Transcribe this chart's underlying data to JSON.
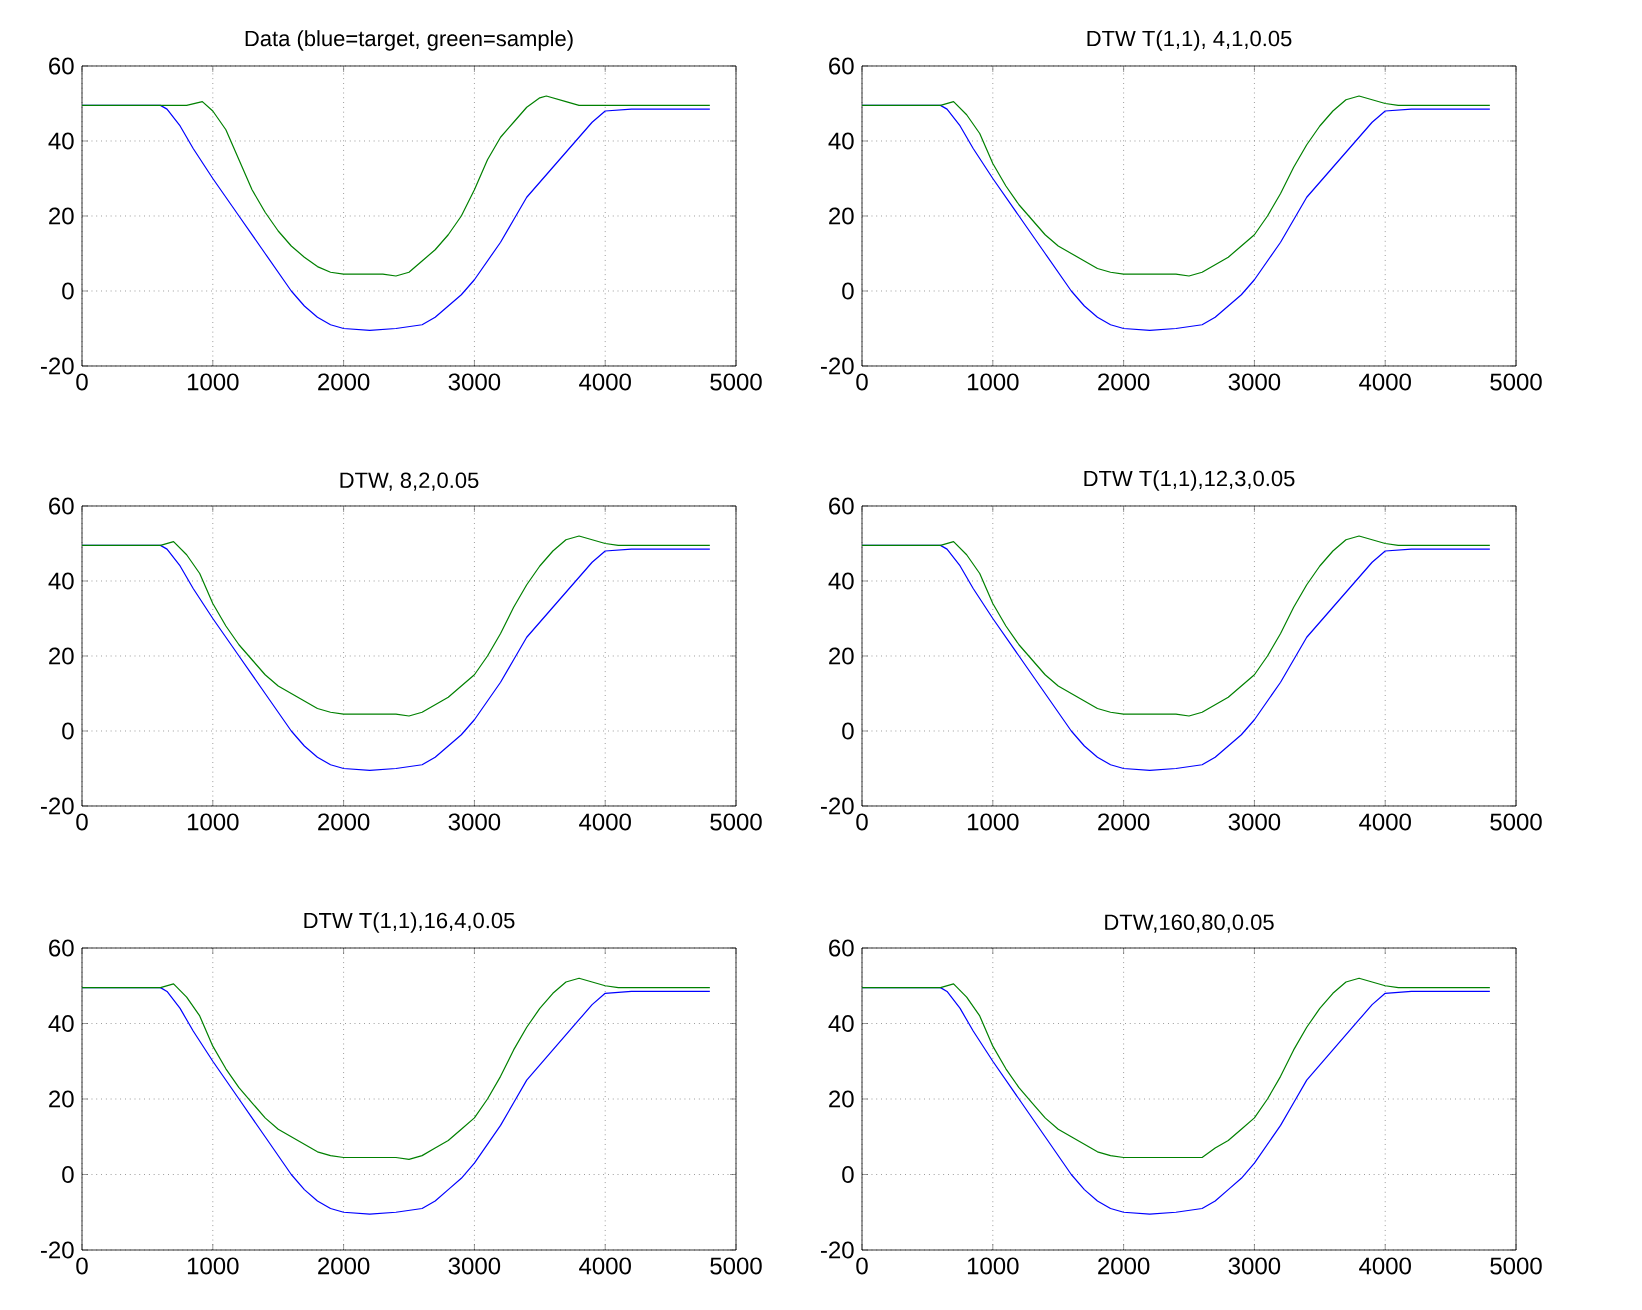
{
  "chart_data": [
    {
      "type": "line",
      "title": "Data (blue=target, green=sample)",
      "xlim": [
        0,
        5000
      ],
      "ylim": [
        -20,
        60
      ],
      "xticks": [
        0,
        1000,
        2000,
        3000,
        4000,
        5000
      ],
      "yticks": [
        -20,
        0,
        20,
        40,
        60
      ],
      "grid": true,
      "series": [
        {
          "color": "#0000ff",
          "x": [
            0,
            600,
            650,
            750,
            850,
            1000,
            1200,
            1400,
            1500,
            1600,
            1700,
            1800,
            1900,
            2000,
            2200,
            2400,
            2600,
            2700,
            2800,
            2900,
            3000,
            3200,
            3300,
            3400,
            3600,
            3800,
            3900,
            4000,
            4200,
            4800
          ],
          "values": [
            49.5,
            49.5,
            48.5,
            44,
            38,
            30,
            20,
            10,
            5,
            0,
            -4,
            -7,
            -9,
            -10,
            -10.5,
            -10,
            -9,
            -7,
            -4,
            -1,
            3,
            13,
            19,
            25,
            33,
            41,
            45,
            48,
            48.5,
            48.5
          ]
        },
        {
          "color": "#008000",
          "x": [
            0,
            800,
            920,
            1000,
            1100,
            1200,
            1300,
            1400,
            1500,
            1600,
            1700,
            1800,
            1900,
            2000,
            2300,
            2400,
            2500,
            2600,
            2700,
            2800,
            2900,
            3000,
            3100,
            3200,
            3300,
            3400,
            3500,
            3550,
            3700,
            3800,
            4800
          ],
          "values": [
            49.5,
            49.5,
            50.5,
            48,
            43,
            35,
            27,
            21,
            16,
            12,
            9,
            6.5,
            5,
            4.5,
            4.5,
            4,
            5,
            8,
            11,
            15,
            20,
            27,
            35,
            41,
            45,
            49,
            51.5,
            52,
            50.5,
            49.5,
            49.5
          ]
        }
      ]
    },
    {
      "type": "line",
      "title": "DTW T(1,1), 4,1,0.05",
      "xlim": [
        0,
        5000
      ],
      "ylim": [
        -20,
        60
      ],
      "xticks": [
        0,
        1000,
        2000,
        3000,
        4000,
        5000
      ],
      "yticks": [
        -20,
        0,
        20,
        40,
        60
      ],
      "grid": true,
      "series": [
        {
          "color": "#0000ff",
          "x": [
            0,
            600,
            650,
            750,
            850,
            1000,
            1200,
            1400,
            1500,
            1600,
            1700,
            1800,
            1900,
            2000,
            2200,
            2400,
            2600,
            2700,
            2800,
            2900,
            3000,
            3200,
            3300,
            3400,
            3600,
            3800,
            3900,
            4000,
            4200,
            4800
          ],
          "values": [
            49.5,
            49.5,
            48.5,
            44,
            38,
            30,
            20,
            10,
            5,
            0,
            -4,
            -7,
            -9,
            -10,
            -10.5,
            -10,
            -9,
            -7,
            -4,
            -1,
            3,
            13,
            19,
            25,
            33,
            41,
            45,
            48,
            48.5,
            48.5
          ]
        },
        {
          "color": "#008000",
          "x": [
            0,
            600,
            700,
            800,
            900,
            1000,
            1100,
            1200,
            1300,
            1400,
            1500,
            1600,
            1700,
            1800,
            1900,
            2000,
            2400,
            2500,
            2600,
            2700,
            2800,
            2900,
            3000,
            3100,
            3200,
            3300,
            3400,
            3500,
            3600,
            3700,
            3800,
            3900,
            4000,
            4100,
            4800
          ],
          "values": [
            49.5,
            49.5,
            50.5,
            47,
            42,
            34,
            28,
            23,
            19,
            15,
            12,
            10,
            8,
            6,
            5,
            4.5,
            4.5,
            4,
            5,
            7,
            9,
            12,
            15,
            20,
            26,
            33,
            39,
            44,
            48,
            51,
            52,
            51,
            50,
            49.5,
            49.5
          ]
        }
      ]
    },
    {
      "type": "line",
      "title": "DTW, 8,2,0.05",
      "xlim": [
        0,
        5000
      ],
      "ylim": [
        -20,
        60
      ],
      "xticks": [
        0,
        1000,
        2000,
        3000,
        4000,
        5000
      ],
      "yticks": [
        -20,
        0,
        20,
        40,
        60
      ],
      "grid": true,
      "series": [
        {
          "color": "#0000ff",
          "x": [
            0,
            600,
            650,
            750,
            850,
            1000,
            1200,
            1400,
            1500,
            1600,
            1700,
            1800,
            1900,
            2000,
            2200,
            2400,
            2600,
            2700,
            2800,
            2900,
            3000,
            3200,
            3300,
            3400,
            3600,
            3800,
            3900,
            4000,
            4200,
            4800
          ],
          "values": [
            49.5,
            49.5,
            48.5,
            44,
            38,
            30,
            20,
            10,
            5,
            0,
            -4,
            -7,
            -9,
            -10,
            -10.5,
            -10,
            -9,
            -7,
            -4,
            -1,
            3,
            13,
            19,
            25,
            33,
            41,
            45,
            48,
            48.5,
            48.5
          ]
        },
        {
          "color": "#008000",
          "x": [
            0,
            600,
            700,
            800,
            900,
            1000,
            1100,
            1200,
            1300,
            1400,
            1500,
            1600,
            1700,
            1800,
            1900,
            2000,
            2400,
            2500,
            2600,
            2700,
            2800,
            2900,
            3000,
            3100,
            3200,
            3300,
            3400,
            3500,
            3600,
            3700,
            3800,
            3900,
            4000,
            4100,
            4800
          ],
          "values": [
            49.5,
            49.5,
            50.5,
            47,
            42,
            34,
            28,
            23,
            19,
            15,
            12,
            10,
            8,
            6,
            5,
            4.5,
            4.5,
            4,
            5,
            7,
            9,
            12,
            15,
            20,
            26,
            33,
            39,
            44,
            48,
            51,
            52,
            51,
            50,
            49.5,
            49.5
          ]
        }
      ]
    },
    {
      "type": "line",
      "title": "DTW T(1,1),12,3,0.05",
      "xlim": [
        0,
        5000
      ],
      "ylim": [
        -20,
        60
      ],
      "xticks": [
        0,
        1000,
        2000,
        3000,
        4000,
        5000
      ],
      "yticks": [
        -20,
        0,
        20,
        40,
        60
      ],
      "grid": true,
      "series": [
        {
          "color": "#0000ff",
          "x": [
            0,
            600,
            650,
            750,
            850,
            1000,
            1200,
            1400,
            1500,
            1600,
            1700,
            1800,
            1900,
            2000,
            2200,
            2400,
            2600,
            2700,
            2800,
            2900,
            3000,
            3200,
            3300,
            3400,
            3600,
            3800,
            3900,
            4000,
            4200,
            4800
          ],
          "values": [
            49.5,
            49.5,
            48.5,
            44,
            38,
            30,
            20,
            10,
            5,
            0,
            -4,
            -7,
            -9,
            -10,
            -10.5,
            -10,
            -9,
            -7,
            -4,
            -1,
            3,
            13,
            19,
            25,
            33,
            41,
            45,
            48,
            48.5,
            48.5
          ]
        },
        {
          "color": "#008000",
          "x": [
            0,
            600,
            700,
            800,
            900,
            1000,
            1100,
            1200,
            1300,
            1400,
            1500,
            1600,
            1700,
            1800,
            1900,
            2000,
            2400,
            2500,
            2600,
            2700,
            2800,
            2900,
            3000,
            3100,
            3200,
            3300,
            3400,
            3500,
            3600,
            3700,
            3800,
            3900,
            4000,
            4100,
            4800
          ],
          "values": [
            49.5,
            49.5,
            50.5,
            47,
            42,
            34,
            28,
            23,
            19,
            15,
            12,
            10,
            8,
            6,
            5,
            4.5,
            4.5,
            4,
            5,
            7,
            9,
            12,
            15,
            20,
            26,
            33,
            39,
            44,
            48,
            51,
            52,
            51,
            50,
            49.5,
            49.5
          ]
        }
      ]
    },
    {
      "type": "line",
      "title": "DTW T(1,1),16,4,0.05",
      "xlim": [
        0,
        5000
      ],
      "ylim": [
        -20,
        60
      ],
      "xticks": [
        0,
        1000,
        2000,
        3000,
        4000,
        5000
      ],
      "yticks": [
        -20,
        0,
        20,
        40,
        60
      ],
      "grid": true,
      "series": [
        {
          "color": "#0000ff",
          "x": [
            0,
            600,
            650,
            750,
            850,
            1000,
            1200,
            1400,
            1500,
            1600,
            1700,
            1800,
            1900,
            2000,
            2200,
            2400,
            2600,
            2700,
            2800,
            2900,
            3000,
            3200,
            3300,
            3400,
            3600,
            3800,
            3900,
            4000,
            4200,
            4800
          ],
          "values": [
            49.5,
            49.5,
            48.5,
            44,
            38,
            30,
            20,
            10,
            5,
            0,
            -4,
            -7,
            -9,
            -10,
            -10.5,
            -10,
            -9,
            -7,
            -4,
            -1,
            3,
            13,
            19,
            25,
            33,
            41,
            45,
            48,
            48.5,
            48.5
          ]
        },
        {
          "color": "#008000",
          "x": [
            0,
            600,
            700,
            800,
            900,
            1000,
            1100,
            1200,
            1300,
            1400,
            1500,
            1600,
            1700,
            1800,
            1900,
            2000,
            2400,
            2500,
            2600,
            2700,
            2800,
            2900,
            3000,
            3100,
            3200,
            3300,
            3400,
            3500,
            3600,
            3700,
            3800,
            3900,
            4000,
            4100,
            4800
          ],
          "values": [
            49.5,
            49.5,
            50.5,
            47,
            42,
            34,
            28,
            23,
            19,
            15,
            12,
            10,
            8,
            6,
            5,
            4.5,
            4.5,
            4,
            5,
            7,
            9,
            12,
            15,
            20,
            26,
            33,
            39,
            44,
            48,
            51,
            52,
            51,
            50,
            49.5,
            49.5
          ]
        }
      ]
    },
    {
      "type": "line",
      "title": "DTW,160,80,0.05",
      "xlim": [
        0,
        5000
      ],
      "ylim": [
        -20,
        60
      ],
      "xticks": [
        0,
        1000,
        2000,
        3000,
        4000,
        5000
      ],
      "yticks": [
        -20,
        0,
        20,
        40,
        60
      ],
      "grid": true,
      "series": [
        {
          "color": "#0000ff",
          "x": [
            0,
            600,
            650,
            750,
            850,
            1000,
            1200,
            1400,
            1500,
            1600,
            1700,
            1800,
            1900,
            2000,
            2200,
            2400,
            2600,
            2700,
            2800,
            2900,
            3000,
            3200,
            3300,
            3400,
            3600,
            3800,
            3900,
            4000,
            4200,
            4800
          ],
          "values": [
            49.5,
            49.5,
            48.5,
            44,
            38,
            30,
            20,
            10,
            5,
            0,
            -4,
            -7,
            -9,
            -10,
            -10.5,
            -10,
            -9,
            -7,
            -4,
            -1,
            3,
            13,
            19,
            25,
            33,
            41,
            45,
            48,
            48.5,
            48.5
          ]
        },
        {
          "color": "#008000",
          "x": [
            0,
            600,
            700,
            800,
            900,
            1000,
            1100,
            1200,
            1300,
            1400,
            1500,
            1600,
            1700,
            1800,
            1900,
            2000,
            2600,
            2700,
            2800,
            2900,
            3000,
            3100,
            3200,
            3300,
            3400,
            3500,
            3600,
            3700,
            3800,
            3900,
            4000,
            4100,
            4800
          ],
          "values": [
            49.5,
            49.5,
            50.5,
            47,
            42,
            34,
            28,
            23,
            19,
            15,
            12,
            10,
            8,
            6,
            5,
            4.5,
            4.5,
            7,
            9,
            12,
            15,
            20,
            26,
            33,
            39,
            44,
            48,
            51,
            52,
            51,
            50,
            49.5,
            49.5
          ]
        }
      ]
    }
  ]
}
